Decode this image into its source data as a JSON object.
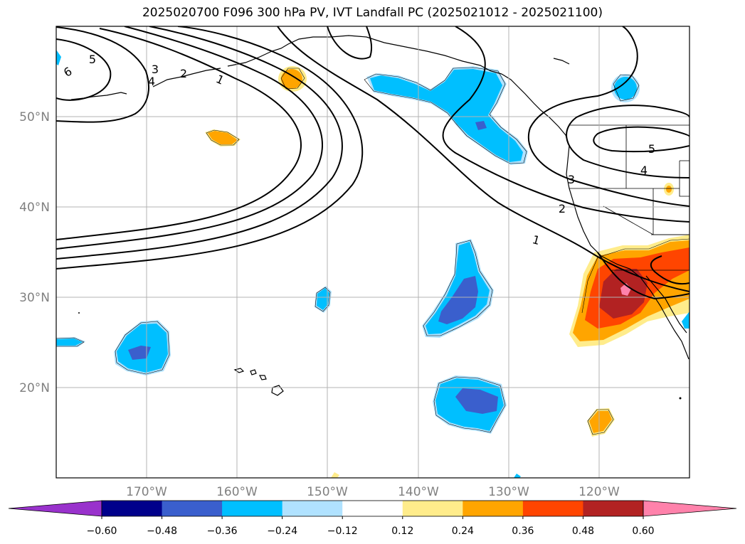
{
  "title": "2025020700 F096 300 hPa PV, IVT Landfall PC (2025021012 - 2025021100)",
  "map": {
    "projection": "equirectangular",
    "lon_range": [
      -180,
      -110
    ],
    "lat_range": [
      10,
      60
    ],
    "x_ticks": [
      {
        "lon": -170,
        "label": "170°W"
      },
      {
        "lon": -160,
        "label": "160°W"
      },
      {
        "lon": -150,
        "label": "150°W"
      },
      {
        "lon": -140,
        "label": "140°W"
      },
      {
        "lon": -130,
        "label": "130°W"
      },
      {
        "lon": -120,
        "label": "120°W"
      }
    ],
    "y_ticks": [
      {
        "lat": 20,
        "label": "20°N"
      },
      {
        "lat": 30,
        "label": "30°N"
      },
      {
        "lat": 40,
        "label": "40°N"
      },
      {
        "lat": 50,
        "label": "50°N"
      }
    ],
    "gridlines": true
  },
  "colorbar": {
    "levels": [
      "−0.60",
      "−0.48",
      "−0.36",
      "−0.24",
      "−0.12",
      "0.12",
      "0.24",
      "0.36",
      "0.48",
      "0.60"
    ],
    "colors": [
      "#9932cc",
      "#00008b",
      "#3a5fcd",
      "#00bfff",
      "#b0e2ff",
      "#ffffff",
      "#ffec8b",
      "#ffa500",
      "#ff4500",
      "#b22222",
      "#ff82ab"
    ],
    "extend": "both"
  },
  "pv_contour_labels": [
    "1",
    "2",
    "3",
    "4",
    "5",
    "6"
  ]
}
